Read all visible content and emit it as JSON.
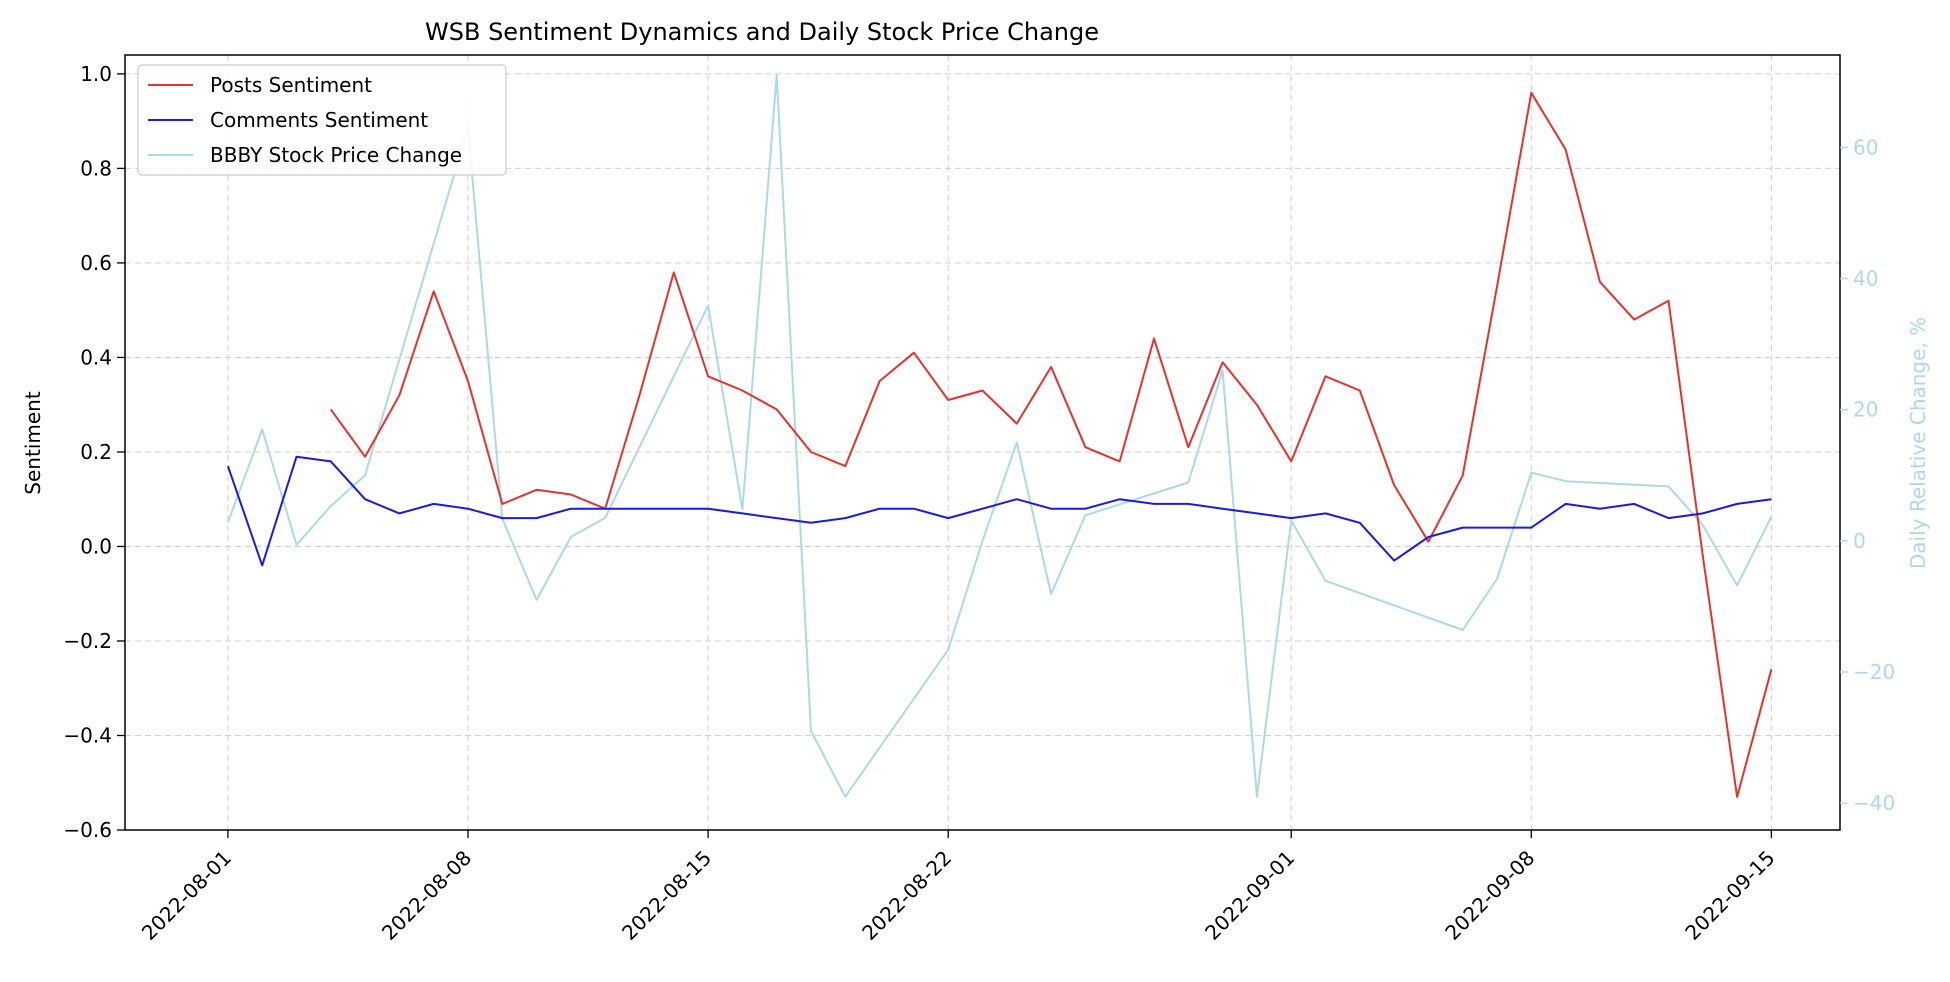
{
  "chart_data": {
    "type": "line",
    "title": "WSB Sentiment Dynamics and Daily Stock Price Change",
    "ylabel_left": "Sentiment",
    "ylabel_right": "Daily Relative Change, %",
    "ylim_left": [
      -0.6,
      1.04
    ],
    "ylim_right": [
      -44.1,
      74.1
    ],
    "xlim": [
      "2022-07-29",
      "2022-09-17"
    ],
    "grid": true,
    "legend_placement": "top-left",
    "x_ticks": [
      "2022-08-01",
      "2022-08-08",
      "2022-08-15",
      "2022-08-22",
      "2022-09-01",
      "2022-09-08",
      "2022-09-15"
    ],
    "y_ticks_left": [
      -0.6,
      -0.4,
      -0.2,
      0.0,
      0.2,
      0.4,
      0.6,
      0.8,
      1.0
    ],
    "y_tick_labels_left": [
      "−0.6",
      "−0.4",
      "−0.2",
      "0.0",
      "0.2",
      "0.4",
      "0.6",
      "0.8",
      "1.0"
    ],
    "y_ticks_right": [
      -40,
      -20,
      0,
      20,
      40,
      60
    ],
    "y_tick_labels_right": [
      "−40",
      "−20",
      "0",
      "20",
      "40",
      "60"
    ],
    "series": [
      {
        "name": "Posts Sentiment",
        "axis": "left",
        "color": "#e8312c",
        "x": [
          "2022-08-04",
          "2022-08-05",
          "2022-08-06",
          "2022-08-07",
          "2022-08-08",
          "2022-08-09",
          "2022-08-10",
          "2022-08-11",
          "2022-08-12",
          "2022-08-13",
          "2022-08-14",
          "2022-08-15",
          "2022-08-16",
          "2022-08-17",
          "2022-08-18",
          "2022-08-19",
          "2022-08-20",
          "2022-08-21",
          "2022-08-22",
          "2022-08-23",
          "2022-08-24",
          "2022-08-25",
          "2022-08-26",
          "2022-08-27",
          "2022-08-28",
          "2022-08-29",
          "2022-08-30",
          "2022-08-31",
          "2022-09-01",
          "2022-09-02",
          "2022-09-03",
          "2022-09-04",
          "2022-09-05",
          "2022-09-06",
          "2022-09-07",
          "2022-09-08",
          "2022-09-09",
          "2022-09-10",
          "2022-09-11",
          "2022-09-12",
          "2022-09-13",
          "2022-09-14",
          "2022-09-15"
        ],
        "values": [
          0.29,
          0.19,
          0.32,
          0.54,
          0.35,
          0.09,
          0.12,
          0.11,
          0.08,
          0.32,
          0.58,
          0.36,
          0.33,
          0.29,
          0.2,
          0.17,
          0.35,
          0.41,
          0.31,
          0.33,
          0.26,
          0.38,
          0.21,
          0.18,
          0.44,
          0.21,
          0.39,
          0.3,
          0.18,
          0.36,
          0.33,
          0.13,
          0.01,
          0.15,
          0.55,
          0.96,
          0.84,
          0.56,
          0.48,
          0.52,
          -0.02,
          -0.53,
          -0.26
        ]
      },
      {
        "name": "Comments Sentiment",
        "axis": "left",
        "color": "#1a1ae6",
        "x": [
          "2022-08-01",
          "2022-08-02",
          "2022-08-03",
          "2022-08-04",
          "2022-08-05",
          "2022-08-06",
          "2022-08-07",
          "2022-08-08",
          "2022-08-09",
          "2022-08-10",
          "2022-08-11",
          "2022-08-12",
          "2022-08-13",
          "2022-08-14",
          "2022-08-15",
          "2022-08-16",
          "2022-08-17",
          "2022-08-18",
          "2022-08-19",
          "2022-08-20",
          "2022-08-21",
          "2022-08-22",
          "2022-08-23",
          "2022-08-24",
          "2022-08-25",
          "2022-08-26",
          "2022-08-27",
          "2022-08-28",
          "2022-08-29",
          "2022-08-30",
          "2022-08-31",
          "2022-09-01",
          "2022-09-02",
          "2022-09-03",
          "2022-09-04",
          "2022-09-05",
          "2022-09-06",
          "2022-09-07",
          "2022-09-08",
          "2022-09-09",
          "2022-09-10",
          "2022-09-11",
          "2022-09-12",
          "2022-09-13",
          "2022-09-14",
          "2022-09-15"
        ],
        "values": [
          0.17,
          -0.04,
          0.19,
          0.18,
          0.1,
          0.07,
          0.09,
          0.08,
          0.06,
          0.06,
          0.08,
          0.08,
          0.08,
          0.08,
          0.08,
          0.07,
          0.06,
          0.05,
          0.06,
          0.08,
          0.08,
          0.06,
          0.08,
          0.1,
          0.08,
          0.08,
          0.1,
          0.09,
          0.09,
          0.08,
          0.07,
          0.06,
          0.07,
          0.05,
          -0.03,
          0.02,
          0.04,
          0.04,
          0.04,
          0.09,
          0.08,
          0.09,
          0.06,
          0.07,
          0.09,
          0.1
        ]
      },
      {
        "name": "BBBY Stock Price Change",
        "axis": "right",
        "color": "#add8e6",
        "x": [
          "2022-08-01",
          "2022-08-02",
          "2022-08-03",
          "2022-08-04",
          "2022-08-05",
          "2022-08-08",
          "2022-08-09",
          "2022-08-10",
          "2022-08-11",
          "2022-08-12",
          "2022-08-15",
          "2022-08-16",
          "2022-08-17",
          "2022-08-18",
          "2022-08-19",
          "2022-08-22",
          "2022-08-23",
          "2022-08-24",
          "2022-08-25",
          "2022-08-26",
          "2022-08-29",
          "2022-08-30",
          "2022-08-31",
          "2022-09-01",
          "2022-09-02",
          "2022-09-06",
          "2022-09-07",
          "2022-09-08",
          "2022-09-09",
          "2022-09-12",
          "2022-09-13",
          "2022-09-14",
          "2022-09-15"
        ],
        "values": [
          2.8,
          17.0,
          -0.6,
          5.3,
          10.0,
          63.0,
          3.4,
          -9.0,
          0.6,
          3.5,
          35.9,
          4.8,
          71.0,
          -29.0,
          -39.0,
          -16.6,
          0.0,
          15.0,
          -8.1,
          3.9,
          8.9,
          26.0,
          -39.0,
          3.1,
          -6.1,
          -13.6,
          -5.8,
          10.4,
          9.1,
          8.3,
          2.4,
          -6.8,
          3.7
        ]
      }
    ]
  }
}
